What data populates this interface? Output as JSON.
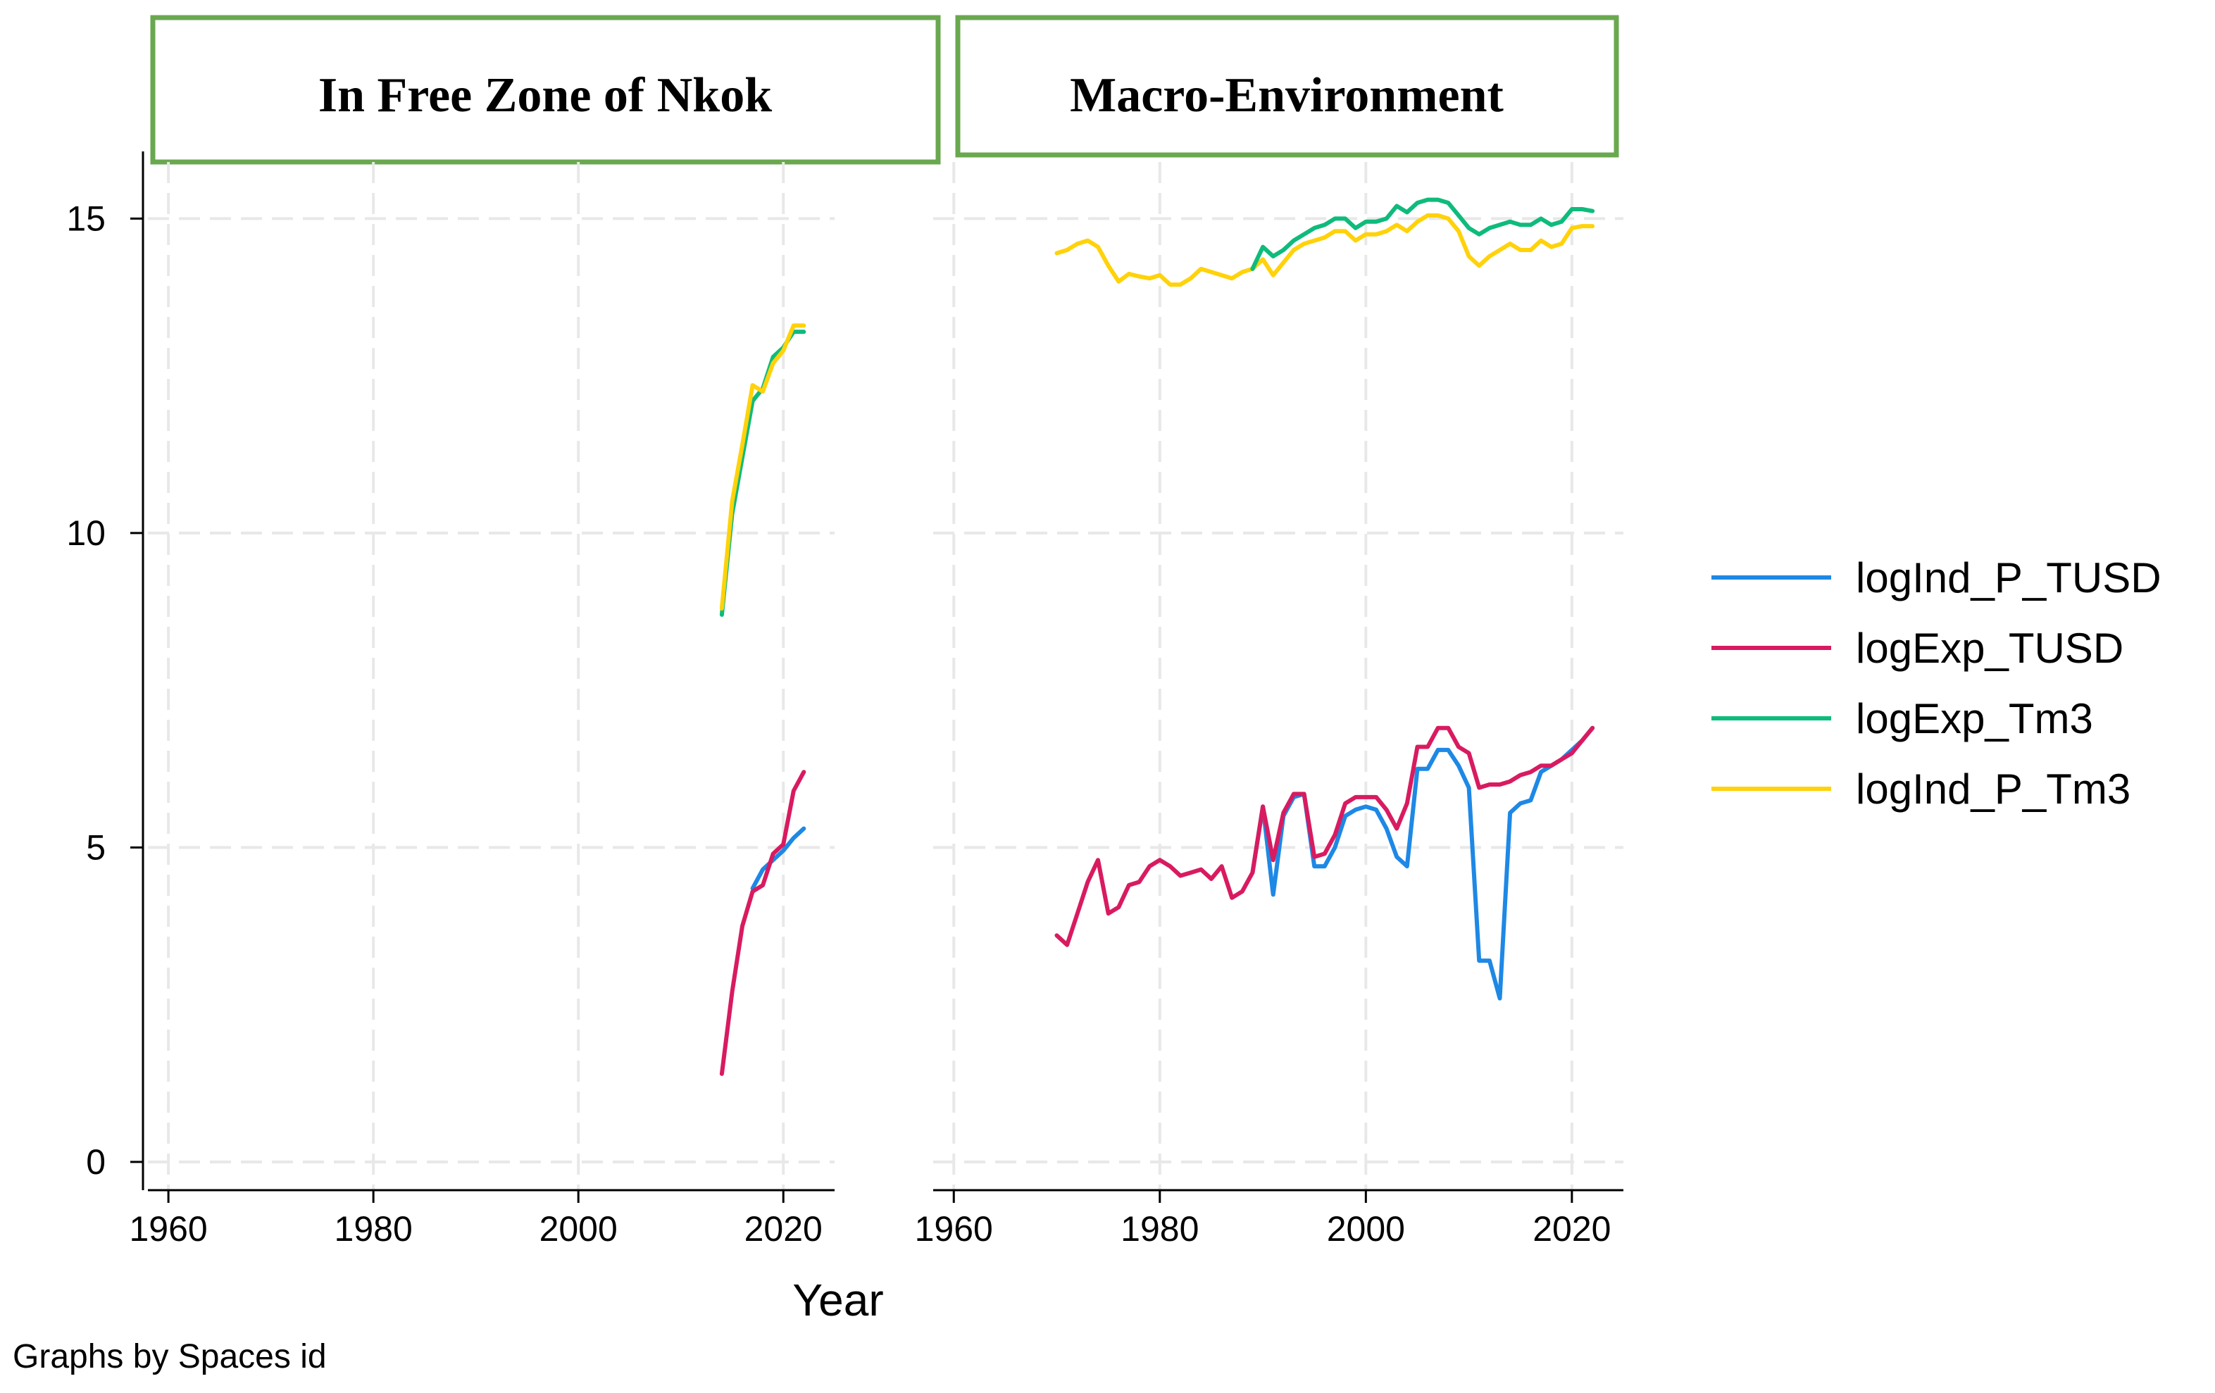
{
  "chart_data": {
    "type": "line",
    "xlabel": "Year",
    "note": "Graphs by Spaces id",
    "x_ticks": [
      1960,
      1980,
      2000,
      2020
    ],
    "y_ticks": [
      0,
      5,
      10,
      15
    ],
    "xlim": [
      1958,
      2025
    ],
    "ylim": [
      -0.45,
      15.9
    ],
    "colors": {
      "logInd_P_TUSD": "#1e88e5",
      "logExp_TUSD": "#d81b60",
      "logExp_Tm3": "#0fbb7c",
      "logInd_P_Tm3": "#ffd20a",
      "panel_border": "#6aa84f",
      "grid": "#e8e8e8"
    },
    "legend": [
      "logInd_P_TUSD",
      "logExp_TUSD",
      "logExp_Tm3",
      "logInd_P_Tm3"
    ],
    "panels": [
      {
        "title": "In Free Zone of Nkok",
        "series": [
          {
            "name": "logExp_Tm3",
            "x": [
              2014,
              2015,
              2016,
              2017,
              2018,
              2019,
              2020,
              2021,
              2022
            ],
            "values": [
              8.7,
              10.3,
              11.2,
              12.1,
              12.3,
              12.8,
              12.95,
              13.2,
              13.2
            ]
          },
          {
            "name": "logInd_P_Tm3",
            "x": [
              2014,
              2015,
              2016,
              2017,
              2018,
              2019,
              2020,
              2021,
              2022
            ],
            "values": [
              8.8,
              10.5,
              11.4,
              12.35,
              12.25,
              12.7,
              12.9,
              13.3,
              13.3
            ]
          },
          {
            "name": "logInd_P_TUSD",
            "x": [
              2017,
              2018,
              2019,
              2020,
              2021,
              2022
            ],
            "values": [
              4.35,
              4.65,
              4.8,
              4.95,
              5.15,
              5.3
            ]
          },
          {
            "name": "logExp_TUSD",
            "x": [
              2014,
              2015,
              2016,
              2017,
              2018,
              2019,
              2020,
              2021,
              2022
            ],
            "values": [
              1.4,
              2.7,
              3.75,
              4.3,
              4.4,
              4.9,
              5.05,
              5.9,
              6.2
            ]
          }
        ]
      },
      {
        "title": "Macro-Environment",
        "series": [
          {
            "name": "logInd_P_Tm3",
            "x": [
              1970,
              1971,
              1972,
              1973,
              1974,
              1975,
              1976,
              1977,
              1978,
              1979,
              1980,
              1981,
              1982,
              1983,
              1984,
              1985,
              1986,
              1987,
              1988,
              1989,
              1990,
              1991,
              1992,
              1993,
              1994,
              1995,
              1996,
              1997,
              1998,
              1999,
              2000,
              2001,
              2002,
              2003,
              2004,
              2005,
              2006,
              2007,
              2008,
              2009,
              2010,
              2011,
              2012,
              2013,
              2014,
              2015,
              2016,
              2017,
              2018,
              2019,
              2020,
              2021,
              2022
            ],
            "values": [
              14.45,
              14.5,
              14.6,
              14.65,
              14.55,
              14.25,
              14.0,
              14.12,
              14.08,
              14.05,
              14.1,
              13.95,
              13.95,
              14.05,
              14.2,
              14.15,
              14.1,
              14.05,
              14.15,
              14.2,
              14.35,
              14.1,
              14.3,
              14.5,
              14.6,
              14.65,
              14.7,
              14.8,
              14.8,
              14.65,
              14.75,
              14.75,
              14.8,
              14.9,
              14.8,
              14.95,
              15.05,
              15.05,
              15.0,
              14.8,
              14.4,
              14.25,
              14.4,
              14.5,
              14.6,
              14.5,
              14.5,
              14.65,
              14.55,
              14.6,
              14.85,
              14.88,
              14.88
            ]
          },
          {
            "name": "logExp_Tm3",
            "x": [
              1989,
              1990,
              1991,
              1992,
              1993,
              1994,
              1995,
              1996,
              1997,
              1998,
              1999,
              2000,
              2001,
              2002,
              2003,
              2004,
              2005,
              2006,
              2007,
              2008,
              2009,
              2010,
              2011,
              2012,
              2013,
              2014,
              2015,
              2016,
              2017,
              2018,
              2019,
              2020,
              2021,
              2022
            ],
            "values": [
              14.2,
              14.55,
              14.4,
              14.5,
              14.65,
              14.75,
              14.85,
              14.9,
              15.0,
              15.0,
              14.85,
              14.95,
              14.95,
              15.0,
              15.2,
              15.1,
              15.25,
              15.3,
              15.3,
              15.25,
              15.05,
              14.85,
              14.75,
              14.85,
              14.9,
              14.95,
              14.9,
              14.9,
              15.0,
              14.9,
              14.95,
              15.15,
              15.15,
              15.12
            ]
          },
          {
            "name": "logInd_P_TUSD",
            "x": [
              1989,
              1990,
              1991,
              1992,
              1993,
              1994,
              1995,
              1996,
              1997,
              1998,
              1999,
              2000,
              2001,
              2002,
              2003,
              2004,
              2005,
              2006,
              2007,
              2008,
              2009,
              2010,
              2011,
              2012,
              2013,
              2014,
              2015,
              2016,
              2017,
              2018,
              2019,
              2020,
              2021,
              2022
            ],
            "values": [
              4.6,
              5.65,
              4.25,
              5.5,
              5.8,
              5.85,
              4.7,
              4.7,
              5.0,
              5.5,
              5.6,
              5.65,
              5.6,
              5.3,
              4.85,
              4.7,
              6.25,
              6.25,
              6.55,
              6.55,
              6.3,
              5.95,
              3.2,
              3.2,
              2.6,
              5.55,
              5.7,
              5.75,
              6.2,
              6.3,
              6.4,
              6.55,
              6.7,
              6.9
            ]
          },
          {
            "name": "logExp_TUSD",
            "x": [
              1970,
              1971,
              1972,
              1973,
              1974,
              1975,
              1976,
              1977,
              1978,
              1979,
              1980,
              1981,
              1982,
              1983,
              1984,
              1985,
              1986,
              1987,
              1988,
              1989,
              1990,
              1991,
              1992,
              1993,
              1994,
              1995,
              1996,
              1997,
              1998,
              1999,
              2000,
              2001,
              2002,
              2003,
              2004,
              2005,
              2006,
              2007,
              2008,
              2009,
              2010,
              2011,
              2012,
              2013,
              2014,
              2015,
              2016,
              2017,
              2018,
              2019,
              2020,
              2021,
              2022
            ],
            "values": [
              3.6,
              3.45,
              3.95,
              4.45,
              4.8,
              3.95,
              4.05,
              4.4,
              4.45,
              4.7,
              4.8,
              4.7,
              4.55,
              4.6,
              4.65,
              4.5,
              4.7,
              4.2,
              4.3,
              4.6,
              5.65,
              4.8,
              5.55,
              5.85,
              5.85,
              4.85,
              4.9,
              5.2,
              5.7,
              5.8,
              5.8,
              5.8,
              5.6,
              5.3,
              5.7,
              6.6,
              6.6,
              6.9,
              6.9,
              6.6,
              6.5,
              5.95,
              6.0,
              6.0,
              6.05,
              6.15,
              6.2,
              6.3,
              6.3,
              6.4,
              6.5,
              6.7,
              6.9
            ]
          }
        ]
      }
    ]
  }
}
